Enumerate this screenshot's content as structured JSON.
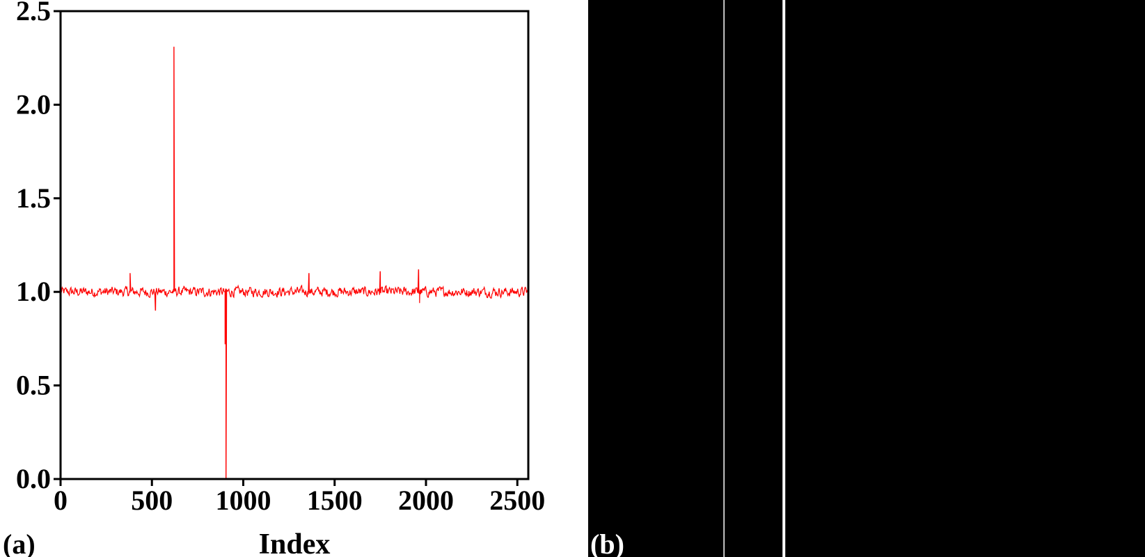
{
  "panel_a": {
    "label": "(a)"
  },
  "panel_b": {
    "label": "(b)"
  },
  "chart_data": {
    "type": "line",
    "title": "",
    "xlabel": "Index",
    "ylabel": "",
    "xlim": [
      0,
      2560
    ],
    "ylim": [
      0.0,
      2.5
    ],
    "x_ticks": [
      0,
      500,
      1000,
      1500,
      2000,
      2500
    ],
    "x_tick_labels": [
      "0",
      "500",
      "1000",
      "1500",
      "2000",
      "2500"
    ],
    "y_ticks": [
      0.0,
      0.5,
      1.0,
      1.5,
      2.0,
      2.5
    ],
    "y_tick_labels": [
      "0.0",
      "0.5",
      "1.0",
      "1.5",
      "2.0",
      "2.5"
    ],
    "grid": false,
    "legend": "none",
    "series": [
      {
        "color": "#ff0000",
        "baseline": 1.0,
        "noise_amplitude": 0.04,
        "notable_points": [
          {
            "x": 620,
            "y": 2.31
          },
          {
            "x": 900,
            "y": 0.72
          },
          {
            "x": 905,
            "y": 0.0
          },
          {
            "x": 380,
            "y": 1.1
          },
          {
            "x": 520,
            "y": 0.9
          },
          {
            "x": 1360,
            "y": 1.1
          },
          {
            "x": 1750,
            "y": 1.11
          },
          {
            "x": 1960,
            "y": 1.12
          },
          {
            "x": 1965,
            "y": 0.94
          }
        ]
      }
    ]
  },
  "image_panel": {
    "background": "#000000",
    "stripe_color": "#ffffff",
    "stripes": [
      {
        "position": 0.243,
        "weight": "thin"
      },
      {
        "position": 0.349,
        "weight": "thick"
      }
    ]
  }
}
